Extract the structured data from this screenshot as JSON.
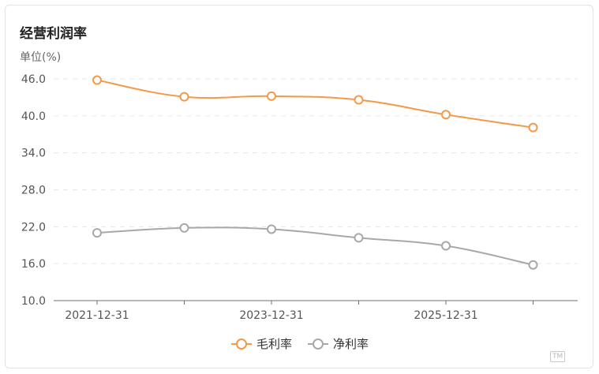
{
  "chart_data": {
    "type": "line",
    "title": "经营利润率",
    "ylabel": "单位(%)",
    "xlabel": "",
    "x": [
      "2021-12-31",
      "2022-12-31",
      "2023-12-31",
      "2024-12-31",
      "2025-12-31",
      "2026-12-31"
    ],
    "x_tick_labels": [
      "2021-12-31",
      "2023-12-31",
      "2025-12-31"
    ],
    "y_ticks": [
      "10.0",
      "16.0",
      "22.0",
      "28.0",
      "34.0",
      "40.0",
      "46.0"
    ],
    "ylim": [
      10,
      46
    ],
    "grid": true,
    "legend_position": "bottom-center",
    "series": [
      {
        "name": "毛利率",
        "color": "#f39a48",
        "values": [
          45.8,
          43.1,
          43.2,
          42.6,
          40.2,
          38.1
        ]
      },
      {
        "name": "净利率",
        "color": "#a8a8a8",
        "values": [
          21.0,
          21.8,
          21.6,
          20.2,
          18.9,
          15.8
        ]
      }
    ]
  },
  "watermark": "钛媒体"
}
